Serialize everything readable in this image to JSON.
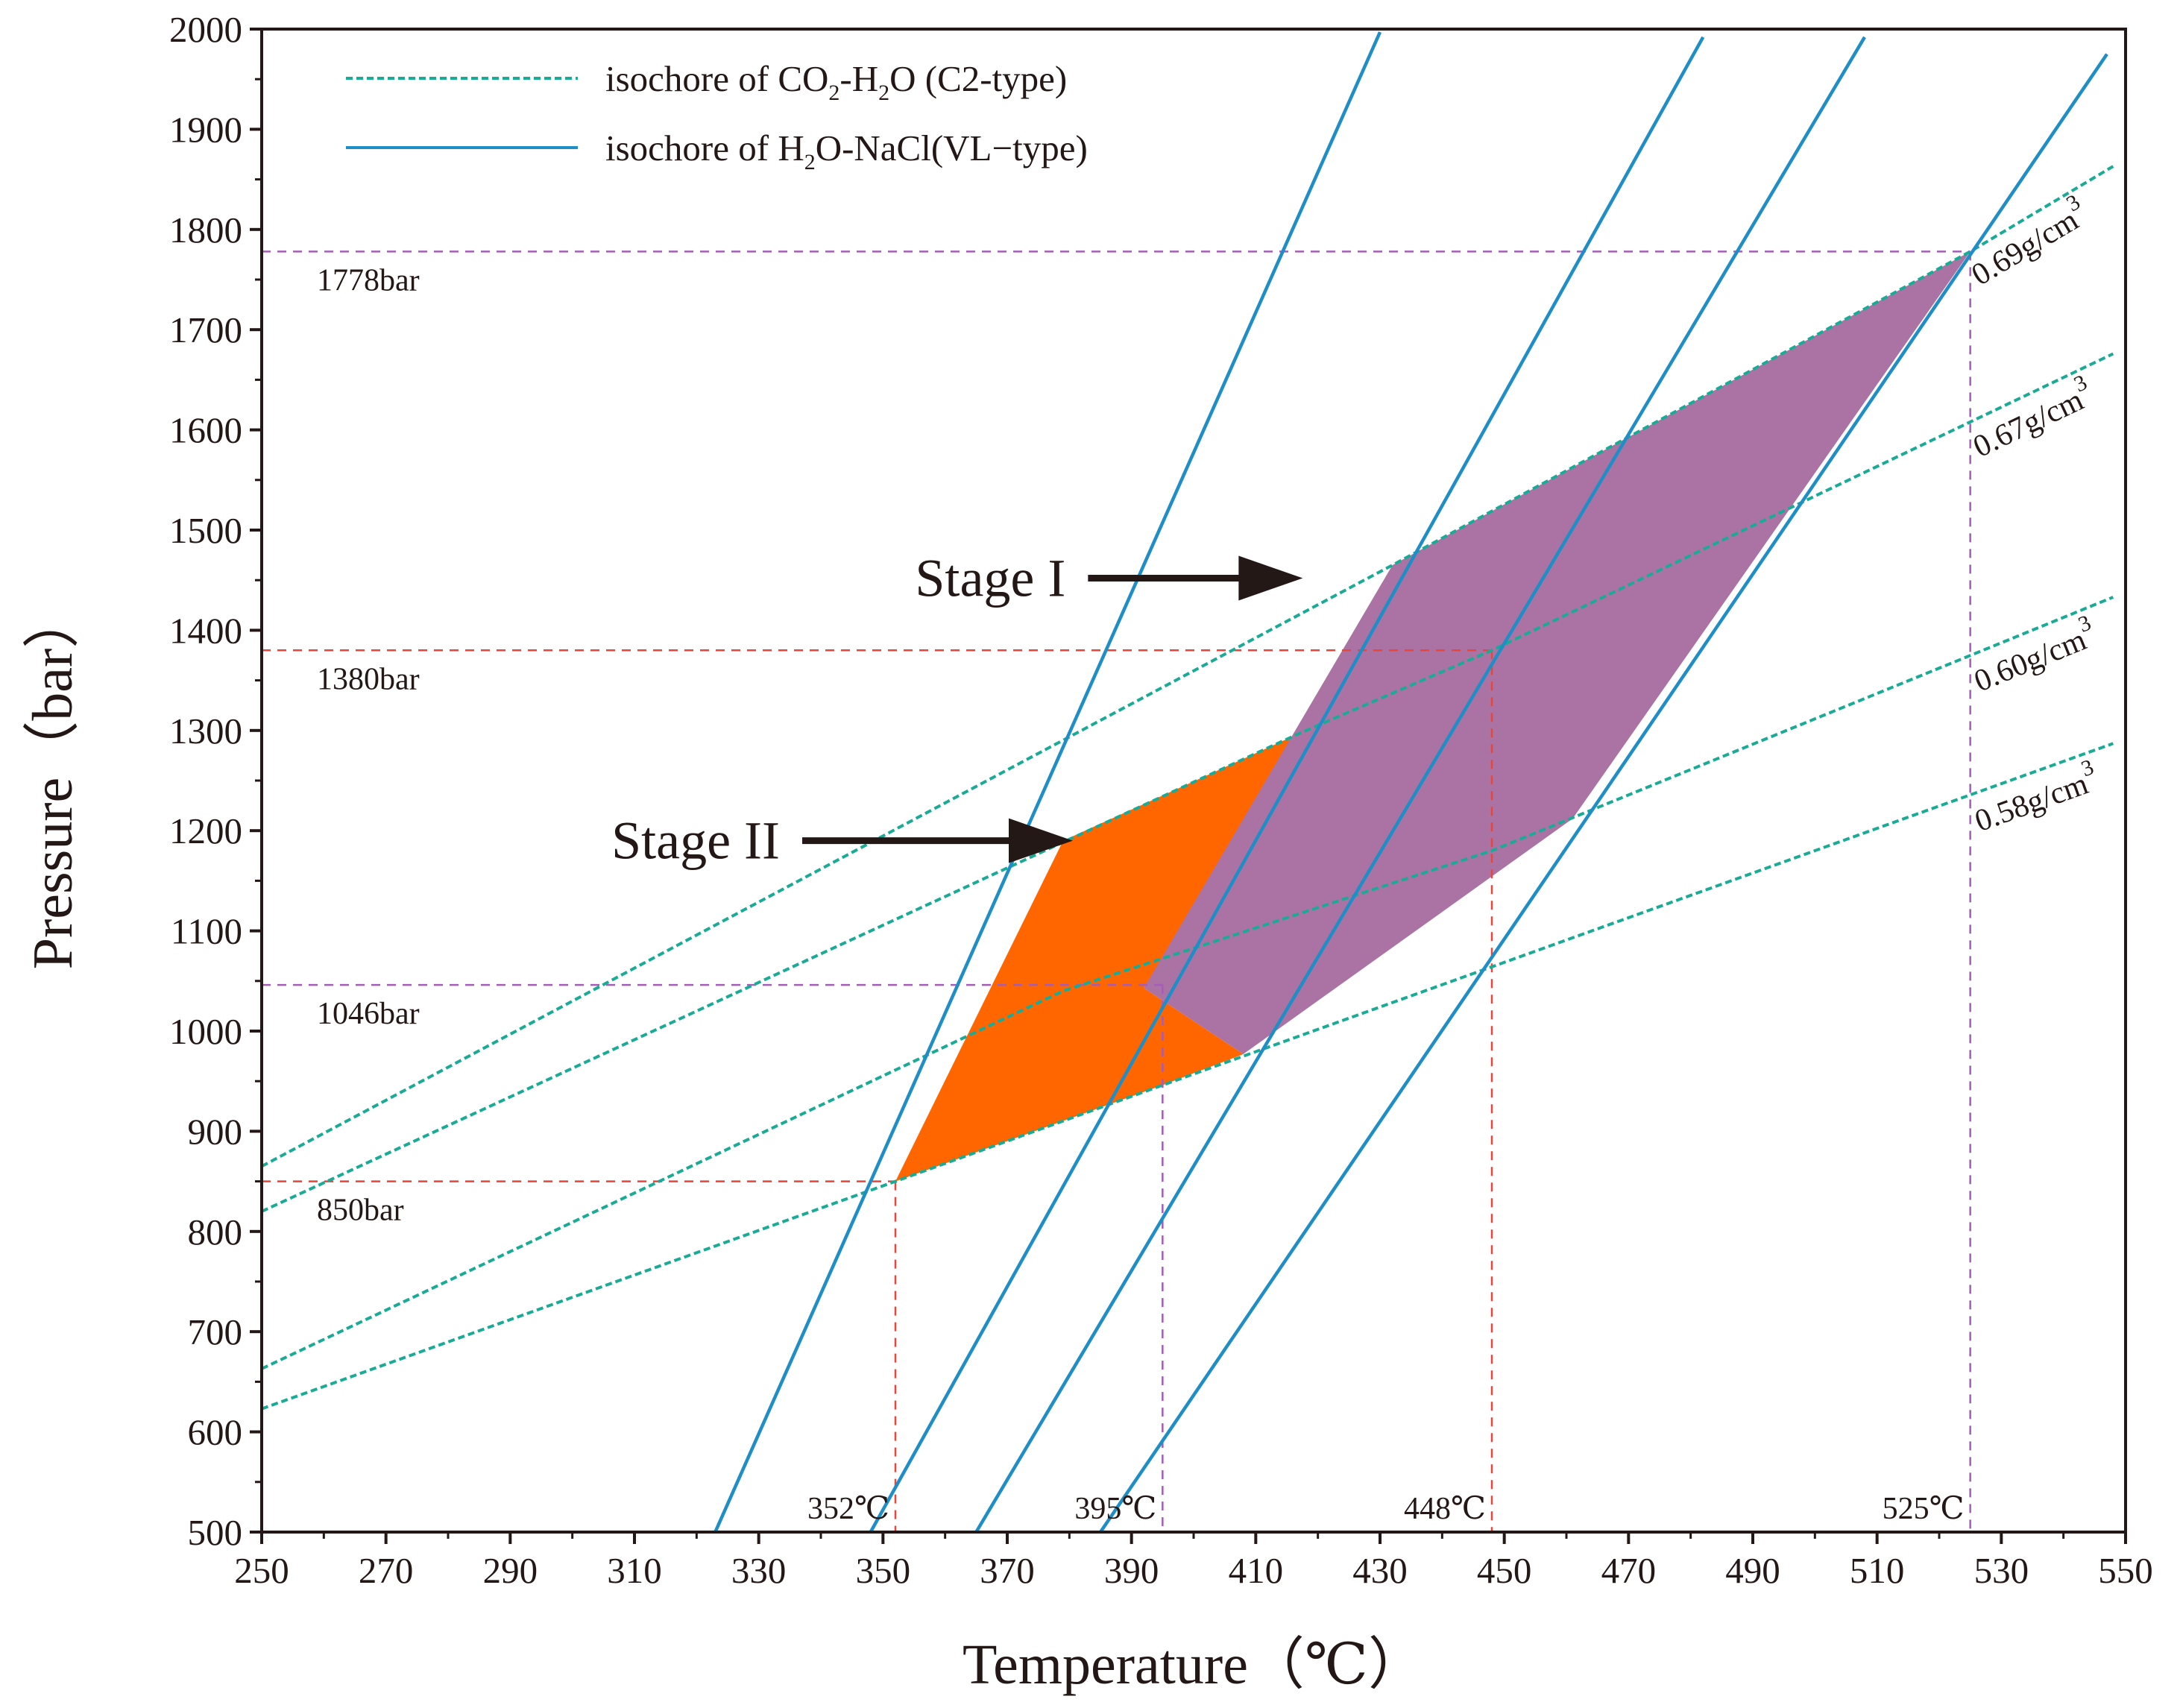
{
  "chart_data": {
    "type": "line",
    "xlabel": "Temperature（℃）",
    "ylabel": "Pressure（bar）",
    "xlim": [
      250,
      550
    ],
    "ylim": [
      500,
      2000
    ],
    "xticks": [
      250,
      270,
      290,
      310,
      330,
      350,
      370,
      390,
      410,
      430,
      450,
      470,
      490,
      510,
      530,
      550
    ],
    "yticks": [
      500,
      600,
      700,
      800,
      900,
      1000,
      1100,
      1200,
      1300,
      1400,
      1500,
      1600,
      1700,
      1800,
      1900,
      2000
    ],
    "grid": false,
    "legend": {
      "position": "top-left",
      "entries": [
        {
          "style": "dashed",
          "color": "#1aab96",
          "text_pre": "isochore of CO",
          "sub1": "2",
          "text_mid": "-H",
          "sub2": "2",
          "text_post": "O (C2-type)"
        },
        {
          "style": "solid",
          "color": "#1f8ec6",
          "text_pre": "isochore of H",
          "sub1": "2",
          "text_post": "O-NaCl(VL−type)"
        }
      ]
    },
    "colors": {
      "co2_isochore": "#1aab96",
      "h2o_nacl_isochore": "#1f8ec6",
      "stage_I_fill": "#ab73a3",
      "stage_II_fill": "#ff6600",
      "ref_red": "#e8463a",
      "ref_purple": "#a55db8"
    },
    "co2_isochores": [
      {
        "label": "0.69g/cm",
        "sup": "3",
        "points": [
          [
            250,
            865
          ],
          [
            432,
            1465
          ],
          [
            525,
            1778
          ],
          [
            548,
            1863
          ]
        ]
      },
      {
        "label": "0.67g/cm",
        "sup": "3",
        "points": [
          [
            250,
            820
          ],
          [
            417,
            1297
          ],
          [
            448,
            1380
          ],
          [
            548,
            1676
          ]
        ]
      },
      {
        "label": "0.60g/cm",
        "sup": "3",
        "points": [
          [
            250,
            663
          ],
          [
            379,
            1040
          ],
          [
            448,
            1180
          ],
          [
            548,
            1433
          ]
        ]
      },
      {
        "label": "0.58g/cm",
        "sup": "3",
        "points": [
          [
            250,
            623
          ],
          [
            352,
            850
          ],
          [
            395,
            946
          ],
          [
            548,
            1287
          ]
        ]
      }
    ],
    "h2o_nacl_isochores": [
      {
        "points": [
          [
            323,
            500
          ],
          [
            430,
            1997
          ]
        ]
      },
      {
        "points": [
          [
            348,
            500
          ],
          [
            482,
            1992
          ]
        ]
      },
      {
        "points": [
          [
            365,
            500
          ],
          [
            508,
            1992
          ]
        ]
      },
      {
        "points": [
          [
            385,
            500
          ],
          [
            547,
            1975
          ]
        ]
      }
    ],
    "stage_regions": [
      {
        "name": "Stage II",
        "points": [
          [
            352,
            850
          ],
          [
            379,
            1190
          ],
          [
            417,
            1297
          ],
          [
            392,
            1043
          ],
          [
            408,
            977
          ],
          [
            395,
            946
          ]
        ]
      },
      {
        "name": "Stage I",
        "points": [
          [
            392,
            1043
          ],
          [
            432,
            1465
          ],
          [
            525,
            1778
          ],
          [
            461,
            1212
          ],
          [
            408,
            977
          ]
        ]
      }
    ],
    "reference_lines": [
      {
        "kind": "pressure",
        "value": 1778,
        "label": "1778bar",
        "color": "ref_purple",
        "x_end": 525
      },
      {
        "kind": "pressure",
        "value": 1380,
        "label": "1380bar",
        "color": "ref_red",
        "x_end": 448
      },
      {
        "kind": "pressure",
        "value": 1046,
        "label": "1046bar",
        "color": "ref_purple",
        "x_end": 395
      },
      {
        "kind": "pressure",
        "value": 850,
        "label": "850bar",
        "color": "ref_red",
        "x_end": 352
      },
      {
        "kind": "temperature",
        "value": 352,
        "label": "352℃",
        "color": "ref_red",
        "y_end": 850
      },
      {
        "kind": "temperature",
        "value": 395,
        "label": "395℃",
        "color": "ref_purple",
        "y_end": 1046
      },
      {
        "kind": "temperature",
        "value": 448,
        "label": "448℃",
        "color": "ref_red",
        "y_end": 1380
      },
      {
        "kind": "temperature",
        "value": 525,
        "label": "525℃",
        "color": "ref_purple",
        "y_end": 1778
      }
    ],
    "annotations": [
      {
        "text": "Stage I",
        "arrow_from": [
          383,
          1452
        ],
        "arrow_to": [
          413,
          1452
        ]
      },
      {
        "text": "Stage II",
        "arrow_from": [
          337,
          1190
        ],
        "arrow_to": [
          376,
          1190
        ]
      }
    ]
  }
}
